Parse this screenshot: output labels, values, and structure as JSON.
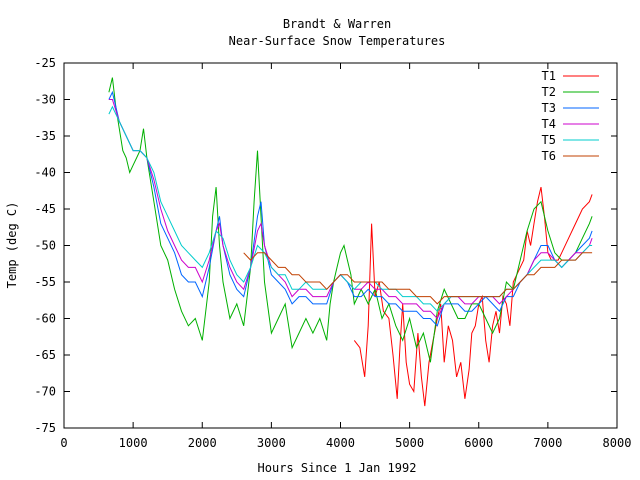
{
  "chart_data": {
    "type": "line",
    "title": "Brandt & Warren",
    "subtitle": "Near-Surface Snow Temperatures",
    "xlabel": "Hours Since 1 Jan 1992",
    "ylabel": "Temp (deg C)",
    "xlim": [
      0,
      8000
    ],
    "ylim": [
      -75,
      -25
    ],
    "xticks": [
      "0",
      "1000",
      "2000",
      "3000",
      "4000",
      "5000",
      "6000",
      "7000",
      "8000"
    ],
    "yticks": [
      "-25",
      "-30",
      "-35",
      "-40",
      "-45",
      "-50",
      "-55",
      "-60",
      "-65",
      "-70",
      "-75"
    ],
    "grid": false,
    "legend_position": "top-right",
    "series": [
      {
        "name": "T1",
        "color": "#ff0000",
        "x": [
          4200,
          4280,
          4350,
          4400,
          4450,
          4500,
          4560,
          4620,
          4700,
          4760,
          4820,
          4860,
          4900,
          4950,
          5000,
          5060,
          5120,
          5170,
          5220,
          5280,
          5340,
          5400,
          5450,
          5500,
          5560,
          5620,
          5680,
          5740,
          5800,
          5860,
          5900,
          5950,
          6000,
          6050,
          6100,
          6150,
          6200,
          6250,
          6300,
          6350,
          6400,
          6450,
          6500,
          6550,
          6600,
          6650,
          6700,
          6750,
          6800,
          6850,
          6900,
          6950,
          7000,
          7050,
          7100,
          7150,
          7200,
          7300,
          7400,
          7500,
          7600,
          7640
        ],
        "y": [
          -63,
          -64,
          -68,
          -61,
          -47,
          -57,
          -55,
          -59,
          -60,
          -65,
          -71,
          -64,
          -58,
          -66,
          -69,
          -70,
          -62,
          -68,
          -72,
          -66,
          -63,
          -60,
          -58,
          -66,
          -61,
          -63,
          -68,
          -66,
          -71,
          -67,
          -62,
          -61,
          -58,
          -57,
          -63,
          -66,
          -61,
          -59,
          -62,
          -57,
          -58,
          -61,
          -55,
          -54,
          -53,
          -52,
          -48,
          -50,
          -47,
          -44,
          -42,
          -46,
          -51,
          -52,
          -52,
          -52,
          -51,
          -49,
          -47,
          -45,
          -44,
          -43
        ]
      },
      {
        "name": "T2",
        "color": "#00b000",
        "x": [
          650,
          700,
          750,
          800,
          850,
          900,
          950,
          1000,
          1050,
          1100,
          1150,
          1200,
          1300,
          1400,
          1500,
          1600,
          1700,
          1800,
          1900,
          2000,
          2100,
          2150,
          2200,
          2250,
          2300,
          2400,
          2500,
          2600,
          2700,
          2750,
          2800,
          2850,
          2900,
          3000,
          3100,
          3200,
          3300,
          3400,
          3500,
          3600,
          3700,
          3800,
          3850,
          3900,
          3950,
          4000,
          4050,
          4100,
          4150,
          4200,
          4300,
          4400,
          4500,
          4600,
          4700,
          4800,
          4900,
          5000,
          5100,
          5200,
          5300,
          5400,
          5500,
          5600,
          5700,
          5800,
          5900,
          6000,
          6100,
          6200,
          6300,
          6400,
          6500,
          6600,
          6700,
          6800,
          6900,
          7000,
          7100,
          7200,
          7300,
          7400,
          7500,
          7600,
          7640
        ],
        "y": [
          -29,
          -27,
          -31,
          -34,
          -37,
          -38,
          -40,
          -39,
          -38,
          -37,
          -34,
          -38,
          -44,
          -50,
          -52,
          -56,
          -59,
          -61,
          -60,
          -63,
          -55,
          -46,
          -42,
          -50,
          -55,
          -60,
          -58,
          -61,
          -53,
          -44,
          -37,
          -46,
          -55,
          -62,
          -60,
          -58,
          -64,
          -62,
          -60,
          -62,
          -60,
          -63,
          -58,
          -55,
          -53,
          -51,
          -50,
          -52,
          -54,
          -58,
          -56,
          -58,
          -56,
          -60,
          -58,
          -61,
          -63,
          -60,
          -64,
          -62,
          -66,
          -59,
          -56,
          -58,
          -60,
          -60,
          -58,
          -58,
          -60,
          -62,
          -60,
          -55,
          -56,
          -52,
          -48,
          -45,
          -44,
          -48,
          -51,
          -52,
          -52,
          -51,
          -49,
          -47,
          -46
        ]
      },
      {
        "name": "T3",
        "color": "#0066ff",
        "x": [
          650,
          700,
          800,
          900,
          1000,
          1100,
          1200,
          1300,
          1400,
          1500,
          1600,
          1700,
          1800,
          1900,
          2000,
          2100,
          2200,
          2250,
          2300,
          2400,
          2500,
          2600,
          2700,
          2800,
          2850,
          2900,
          3000,
          3100,
          3200,
          3300,
          3400,
          3500,
          3600,
          3700,
          3800,
          3900,
          4000,
          4100,
          4200,
          4300,
          4400,
          4500,
          4600,
          4700,
          4800,
          4900,
          5000,
          5100,
          5200,
          5300,
          5400,
          5500,
          5600,
          5700,
          5800,
          5900,
          6000,
          6100,
          6200,
          6300,
          6400,
          6500,
          6600,
          6700,
          6800,
          6900,
          7000,
          7100,
          7200,
          7300,
          7400,
          7500,
          7600,
          7640
        ],
        "y": [
          -30,
          -29,
          -33,
          -35,
          -37,
          -37,
          -38,
          -42,
          -47,
          -49,
          -51,
          -54,
          -55,
          -55,
          -57,
          -53,
          -48,
          -46,
          -50,
          -54,
          -56,
          -57,
          -53,
          -46,
          -44,
          -50,
          -54,
          -55,
          -56,
          -58,
          -57,
          -57,
          -58,
          -58,
          -58,
          -55,
          -54,
          -55,
          -57,
          -57,
          -56,
          -57,
          -57,
          -58,
          -58,
          -59,
          -59,
          -59,
          -60,
          -60,
          -61,
          -58,
          -58,
          -58,
          -59,
          -59,
          -58,
          -57,
          -58,
          -59,
          -57,
          -57,
          -55,
          -54,
          -52,
          -50,
          -50,
          -52,
          -53,
          -52,
          -51,
          -50,
          -49,
          -48
        ]
      },
      {
        "name": "T4",
        "color": "#cc00cc",
        "x": [
          650,
          700,
          800,
          900,
          1000,
          1100,
          1200,
          1300,
          1400,
          1500,
          1600,
          1700,
          1800,
          1900,
          2000,
          2100,
          2200,
          2250,
          2300,
          2400,
          2500,
          2600,
          2700,
          2800,
          2850,
          2900,
          3000,
          3100,
          3200,
          3300,
          3400,
          3500,
          3600,
          3700,
          3800,
          3900,
          4000,
          4100,
          4200,
          4300,
          4400,
          4500,
          4600,
          4700,
          4800,
          4900,
          5000,
          5100,
          5200,
          5300,
          5400,
          5500,
          5600,
          5700,
          5800,
          5900,
          6000,
          6100,
          6200,
          6300,
          6400,
          6500,
          6600,
          6700,
          6800,
          6900,
          7000,
          7100,
          7200,
          7300,
          7400,
          7500,
          7600,
          7640
        ],
        "y": [
          -30,
          -30,
          -33,
          -35,
          -37,
          -37,
          -38,
          -41,
          -45,
          -48,
          -50,
          -52,
          -53,
          -53,
          -55,
          -52,
          -48,
          -47,
          -50,
          -53,
          -55,
          -56,
          -53,
          -48,
          -47,
          -50,
          -53,
          -54,
          -55,
          -57,
          -56,
          -56,
          -57,
          -57,
          -57,
          -55,
          -54,
          -55,
          -56,
          -56,
          -55,
          -56,
          -56,
          -57,
          -57,
          -58,
          -58,
          -58,
          -59,
          -59,
          -60,
          -58,
          -57,
          -57,
          -58,
          -58,
          -57,
          -57,
          -57,
          -58,
          -57,
          -56,
          -55,
          -54,
          -52,
          -51,
          -51,
          -52,
          -53,
          -52,
          -51,
          -51,
          -50,
          -49
        ]
      },
      {
        "name": "T5",
        "color": "#00cccc",
        "x": [
          650,
          700,
          800,
          900,
          1000,
          1100,
          1200,
          1300,
          1400,
          1500,
          1600,
          1700,
          1800,
          1900,
          2000,
          2100,
          2200,
          2300,
          2400,
          2500,
          2600,
          2700,
          2800,
          2900,
          3000,
          3100,
          3200,
          3300,
          3400,
          3500,
          3600,
          3700,
          3800,
          3900,
          4000,
          4100,
          4200,
          4300,
          4400,
          4500,
          4600,
          4700,
          4800,
          4900,
          5000,
          5100,
          5200,
          5300,
          5400,
          5500,
          5600,
          5700,
          5800,
          5900,
          6000,
          6100,
          6200,
          6300,
          6400,
          6500,
          6600,
          6700,
          6800,
          6900,
          7000,
          7100,
          7200,
          7300,
          7400,
          7500,
          7600,
          7640
        ],
        "y": [
          -32,
          -31,
          -33,
          -35,
          -37,
          -37,
          -38,
          -40,
          -44,
          -46,
          -48,
          -50,
          -51,
          -52,
          -53,
          -51,
          -48,
          -49,
          -52,
          -54,
          -55,
          -53,
          -50,
          -51,
          -53,
          -54,
          -54,
          -56,
          -56,
          -55,
          -56,
          -56,
          -56,
          -55,
          -54,
          -55,
          -56,
          -55,
          -55,
          -55,
          -56,
          -56,
          -56,
          -57,
          -57,
          -57,
          -58,
          -58,
          -59,
          -58,
          -57,
          -57,
          -57,
          -57,
          -57,
          -57,
          -57,
          -57,
          -56,
          -56,
          -55,
          -54,
          -53,
          -52,
          -52,
          -52,
          -53,
          -52,
          -52,
          -51,
          -50,
          -50
        ]
      },
      {
        "name": "T6",
        "color": "#c04000",
        "x": [
          2600,
          2700,
          2800,
          2900,
          3000,
          3100,
          3200,
          3300,
          3400,
          3500,
          3600,
          3700,
          3800,
          3900,
          4000,
          4100,
          4200,
          4300,
          4400,
          4500,
          4600,
          4700,
          4800,
          4900,
          5000,
          5100,
          5200,
          5300,
          5400,
          5500,
          5600,
          5700,
          5800,
          5900,
          6000,
          6100,
          6200,
          6300,
          6400,
          6500,
          6600,
          6700,
          6800,
          6900,
          7000,
          7100,
          7200,
          7300,
          7400,
          7500,
          7600,
          7640
        ],
        "y": [
          -51,
          -52,
          -51,
          -51,
          -52,
          -53,
          -53,
          -54,
          -54,
          -55,
          -55,
          -55,
          -56,
          -55,
          -54,
          -54,
          -55,
          -55,
          -55,
          -55,
          -55,
          -56,
          -56,
          -56,
          -56,
          -57,
          -57,
          -57,
          -58,
          -57,
          -57,
          -57,
          -57,
          -57,
          -57,
          -57,
          -57,
          -57,
          -56,
          -56,
          -55,
          -54,
          -54,
          -53,
          -53,
          -53,
          -52,
          -52,
          -52,
          -51,
          -51,
          -51
        ]
      }
    ]
  }
}
